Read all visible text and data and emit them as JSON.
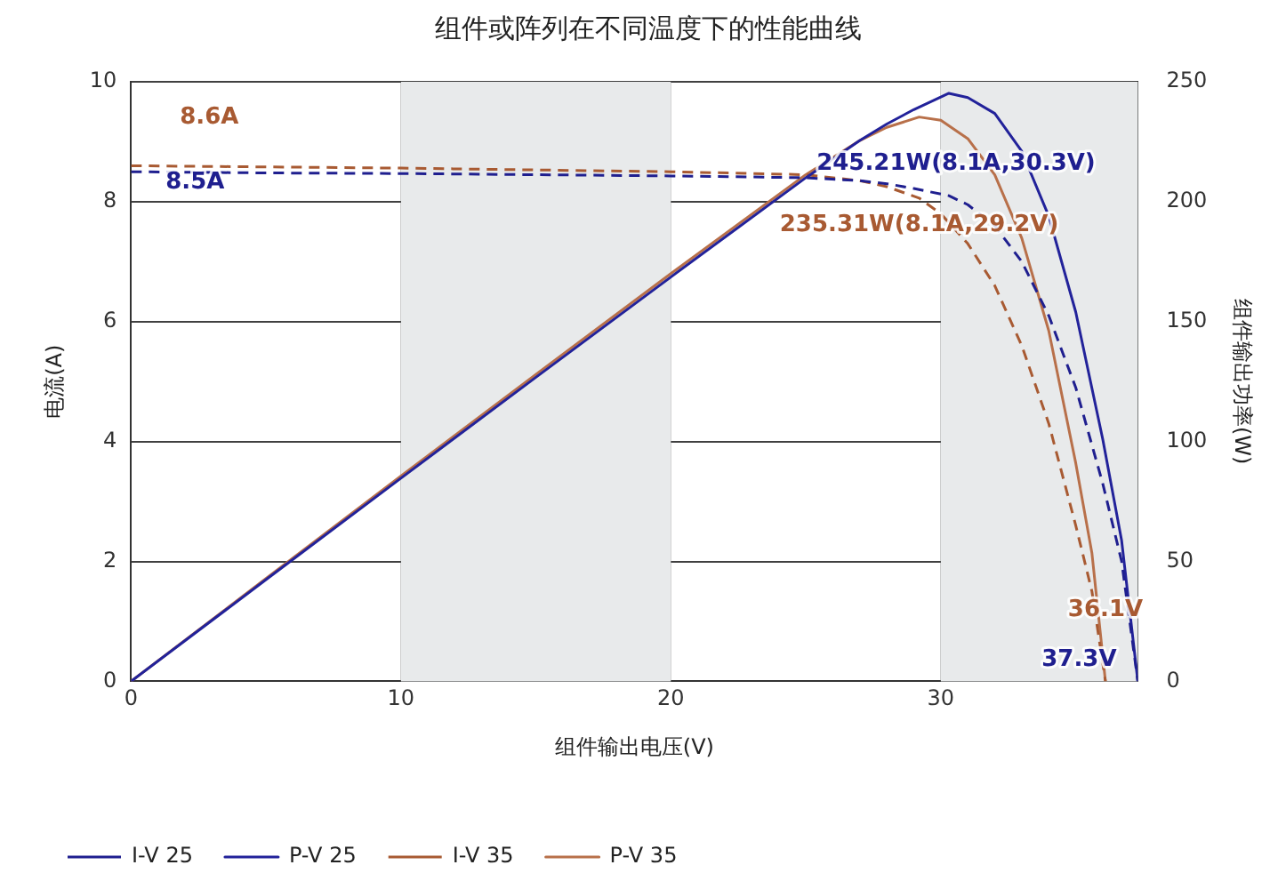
{
  "chart_data": {
    "type": "line",
    "title": "组件或阵列在不同温度下的性能曲线",
    "xlabel": "组件输出电压(V)",
    "ylabel": "电流(A)",
    "y2label": "组件输出功率(W)",
    "x": [
      0,
      5,
      10,
      15,
      20,
      25,
      27,
      28,
      29,
      30.3,
      31,
      32,
      33,
      34,
      35,
      36,
      36.7,
      37.3
    ],
    "series": [
      {
        "name": "I-V 25",
        "color": "#1f1f8f",
        "line_style": "dashed",
        "values": [
          8.5,
          8.48,
          8.47,
          8.45,
          8.43,
          8.4,
          8.35,
          8.3,
          8.22,
          8.1,
          7.95,
          7.6,
          7.0,
          6.1,
          4.9,
          3.3,
          2.0,
          0
        ]
      },
      {
        "name": "P-V 25",
        "color": "#22229a",
        "axis": "y2",
        "line_style": "solid",
        "values": [
          0,
          42.4,
          84.7,
          126.8,
          168.6,
          210,
          225.5,
          232.4,
          238.4,
          245.21,
          243.4,
          236.8,
          221,
          194,
          154,
          101,
          58.7,
          0
        ]
      },
      {
        "name": "I-V 35",
        "color": "#a85a32",
        "line_style": "dashed",
        "x": [
          0,
          5,
          10,
          15,
          20,
          25,
          27,
          28,
          29.2,
          30,
          31,
          32,
          33,
          34,
          35,
          35.6,
          36.1
        ],
        "values": [
          8.6,
          8.58,
          8.56,
          8.53,
          8.5,
          8.45,
          8.35,
          8.25,
          8.06,
          7.8,
          7.3,
          6.6,
          5.6,
          4.3,
          2.6,
          1.5,
          0
        ]
      },
      {
        "name": "P-V 35",
        "color": "#b8704a",
        "axis": "y2",
        "line_style": "solid",
        "x": [
          0,
          5,
          10,
          15,
          20,
          25,
          27,
          28,
          29.2,
          30,
          31,
          32,
          33,
          34,
          35,
          35.6,
          36.1
        ],
        "values": [
          0,
          42.9,
          85.6,
          128,
          170,
          211.3,
          225.5,
          231,
          235.31,
          234,
          226.3,
          211.2,
          184.8,
          146.2,
          91,
          53.4,
          0
        ]
      }
    ],
    "xlim": [
      0,
      37.3
    ],
    "xticks": [
      0,
      10,
      20,
      30
    ],
    "ylim": [
      0,
      10
    ],
    "yticks": [
      0,
      2,
      4,
      6,
      8,
      10
    ],
    "y2lim": [
      0,
      250
    ],
    "y2ticks": [
      0,
      50,
      100,
      150,
      200,
      250
    ],
    "bands": [
      {
        "axis": "x",
        "from": 10,
        "to": 20,
        "color": "#e8eaeb"
      },
      {
        "axis": "x",
        "from": 30,
        "to": 37.3,
        "color": "#e8eaeb"
      }
    ],
    "annotations": [
      {
        "text": "8.6A",
        "x": 0,
        "y": 8.6
      },
      {
        "text": "8.5A",
        "x": 0,
        "y": 8.5
      },
      {
        "text": "245.21W(8.1A,30.3V)",
        "x": 30.3,
        "y": 8.1
      },
      {
        "text": "235.31W(8.1A,29.2V)",
        "x": 29.2,
        "y": 8.06
      },
      {
        "text": "36.1V",
        "x": 36.1,
        "y": 0
      },
      {
        "text": "37.3V",
        "x": 37.3,
        "y": 0
      }
    ],
    "grid": true,
    "legend": "bottom left",
    "marker": "none"
  }
}
